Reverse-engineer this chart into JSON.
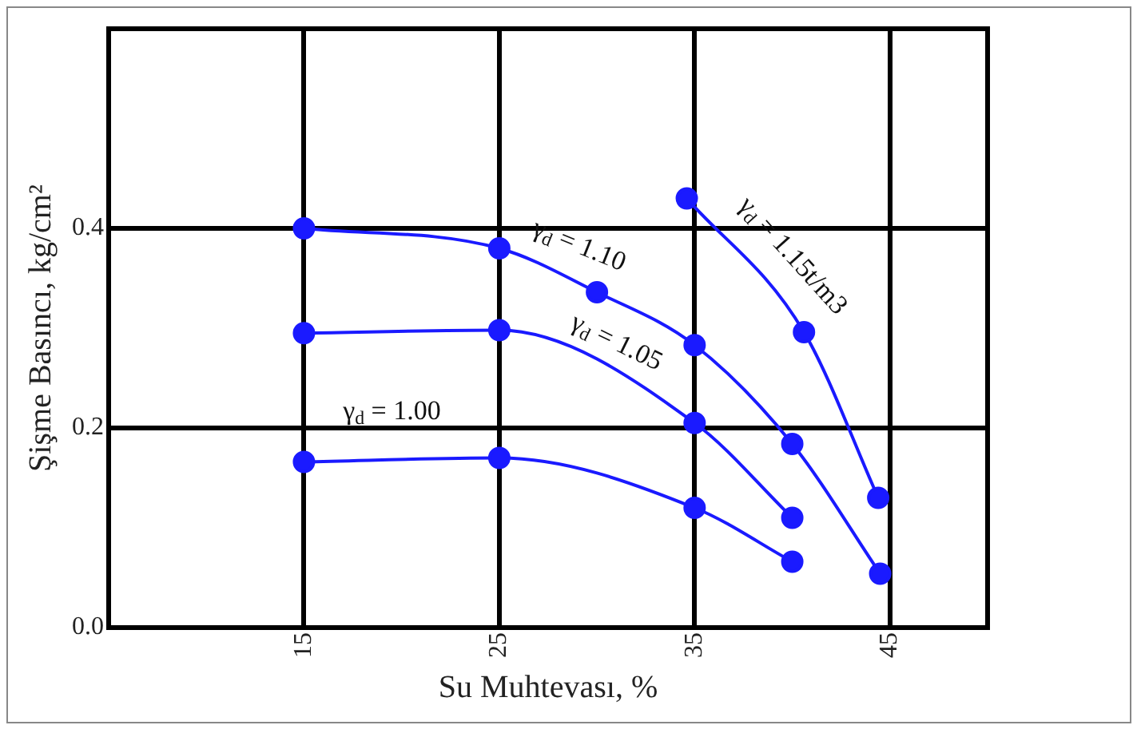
{
  "chart_data": {
    "type": "line",
    "xlabel": "Su Muhtevası, %",
    "ylabel": "Şişme Basıncı, kg/cm²",
    "xlim": [
      5,
      50
    ],
    "xticks": [
      15,
      25,
      35,
      45
    ],
    "ylim": [
      0,
      0.6
    ],
    "yticks": [
      {
        "value": 0,
        "label": "0.0"
      },
      {
        "value": 0.2,
        "label": "0.2"
      },
      {
        "value": 0.4,
        "label": "0.4"
      }
    ],
    "grid": true,
    "legend": false,
    "marker": "circle",
    "line_style": "solid",
    "series": [
      {
        "name": "γ$_{d}$ = 1.00",
        "color": "#1a1aff",
        "x": [
          15,
          25,
          35,
          40
        ],
        "values": [
          0.166,
          0.17,
          0.12,
          0.066
        ]
      },
      {
        "name": "γ$_{d}$ = 1.05",
        "color": "#1a1aff",
        "x": [
          15,
          25,
          35,
          40
        ],
        "values": [
          0.295,
          0.298,
          0.205,
          0.11
        ]
      },
      {
        "name": "γ$_{d}$ = 1.10",
        "color": "#1a1aff",
        "x": [
          15,
          25,
          30,
          35,
          40,
          44.5
        ],
        "values": [
          0.4,
          0.38,
          0.336,
          0.283,
          0.184,
          0.054
        ]
      },
      {
        "name": "γ$_{d}$ = 1.15t/m3",
        "color": "#1a1aff",
        "x": [
          34.6,
          40.6,
          44.4
        ],
        "values": [
          0.43,
          0.296,
          0.13
        ]
      }
    ]
  }
}
